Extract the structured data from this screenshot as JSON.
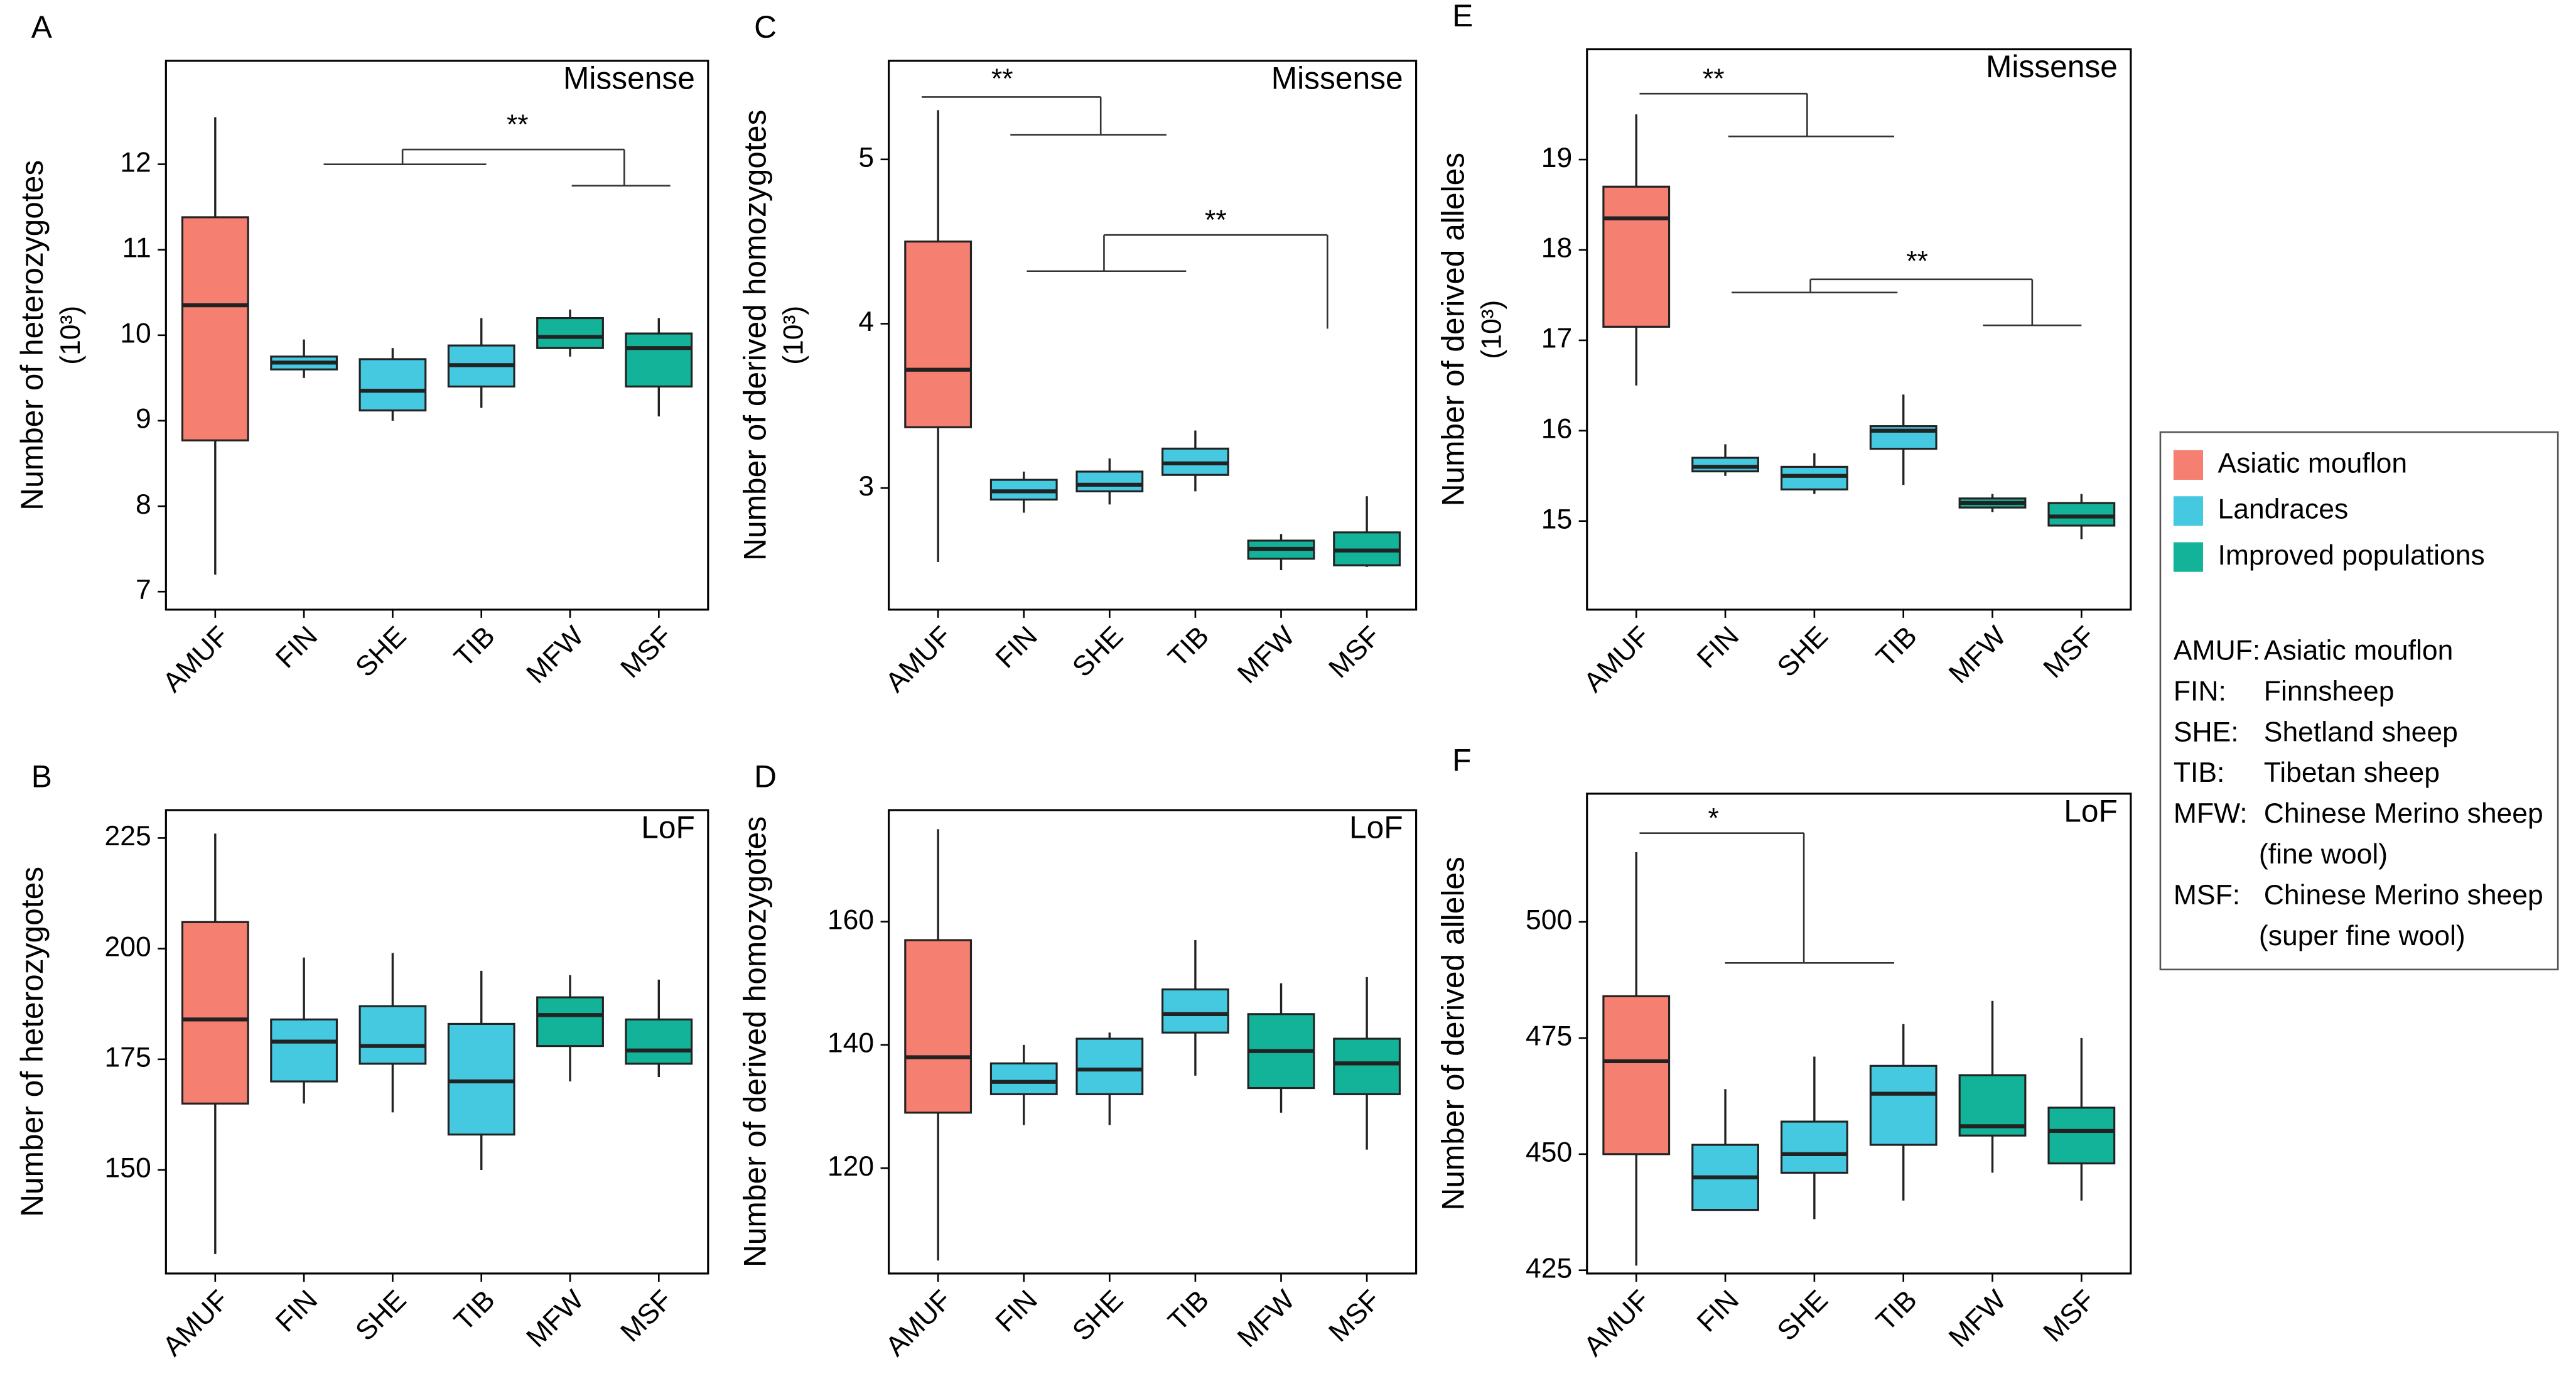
{
  "chart_data": [
    {
      "type": "box",
      "panel": "A",
      "tag": "Missense",
      "ylabel": "Number of heterozygotes",
      "ylabel_unit": "(10³)",
      "categories": [
        "AMUF",
        "FIN",
        "SHE",
        "TIB",
        "MFW",
        "MSF"
      ],
      "colors": [
        "#f57f70",
        "#45c9e0",
        "#45c9e0",
        "#45c9e0",
        "#13b39a",
        "#13b39a"
      ],
      "boxes": [
        {
          "min": 7.2,
          "q1": 8.77,
          "median": 10.35,
          "q3": 11.38,
          "max": 12.55
        },
        {
          "min": 9.5,
          "q1": 9.6,
          "median": 9.68,
          "q3": 9.75,
          "max": 9.95
        },
        {
          "min": 9.0,
          "q1": 9.12,
          "median": 9.35,
          "q3": 9.72,
          "max": 9.85
        },
        {
          "min": 9.15,
          "q1": 9.4,
          "median": 9.65,
          "q3": 9.88,
          "max": 10.2
        },
        {
          "min": 9.75,
          "q1": 9.85,
          "median": 9.98,
          "q3": 10.2,
          "max": 10.3
        },
        {
          "min": 9.05,
          "q1": 9.4,
          "median": 9.85,
          "q3": 10.02,
          "max": 10.2
        }
      ],
      "ylim": [
        6.79,
        13.21
      ],
      "yticks": [
        7,
        8,
        9,
        10,
        11,
        12
      ],
      "annotations": [
        {
          "text": "**"
        }
      ]
    },
    {
      "type": "box",
      "panel": "B",
      "tag": "LoF",
      "ylabel": "Number of heterozygotes",
      "categories": [
        "AMUF",
        "FIN",
        "SHE",
        "TIB",
        "MFW",
        "MSF"
      ],
      "colors": [
        "#f57f70",
        "#45c9e0",
        "#45c9e0",
        "#45c9e0",
        "#13b39a",
        "#13b39a"
      ],
      "boxes": [
        {
          "min": 131,
          "q1": 165,
          "median": 184,
          "q3": 206,
          "max": 226
        },
        {
          "min": 165,
          "q1": 170,
          "median": 179,
          "q3": 184,
          "max": 198
        },
        {
          "min": 163,
          "q1": 174,
          "median": 178,
          "q3": 187,
          "max": 199
        },
        {
          "min": 150,
          "q1": 158,
          "median": 170,
          "q3": 183,
          "max": 195
        },
        {
          "min": 170,
          "q1": 178,
          "median": 185,
          "q3": 189,
          "max": 194
        },
        {
          "min": 171,
          "q1": 174,
          "median": 177,
          "q3": 184,
          "max": 193
        }
      ],
      "ylim": [
        126.6,
        231.3
      ],
      "yticks": [
        150,
        175,
        200,
        225
      ],
      "annotations": []
    },
    {
      "type": "box",
      "panel": "C",
      "tag": "Missense",
      "ylabel": "Number of derived homozygotes",
      "ylabel_unit": "(10³)",
      "categories": [
        "AMUF",
        "FIN",
        "SHE",
        "TIB",
        "MFW",
        "MSF"
      ],
      "colors": [
        "#f57f70",
        "#45c9e0",
        "#45c9e0",
        "#45c9e0",
        "#13b39a",
        "#13b39a"
      ],
      "boxes": [
        {
          "min": 2.55,
          "q1": 3.37,
          "median": 3.72,
          "q3": 4.5,
          "max": 5.3
        },
        {
          "min": 2.85,
          "q1": 2.93,
          "median": 2.98,
          "q3": 3.05,
          "max": 3.1
        },
        {
          "min": 2.9,
          "q1": 2.98,
          "median": 3.02,
          "q3": 3.1,
          "max": 3.18
        },
        {
          "min": 2.98,
          "q1": 3.08,
          "median": 3.15,
          "q3": 3.24,
          "max": 3.35
        },
        {
          "min": 2.5,
          "q1": 2.57,
          "median": 2.63,
          "q3": 2.68,
          "max": 2.72
        },
        {
          "min": 2.52,
          "q1": 2.53,
          "median": 2.62,
          "q3": 2.73,
          "max": 2.95
        }
      ],
      "ylim": [
        2.26,
        5.6
      ],
      "yticks": [
        3,
        4,
        5
      ],
      "annotations": [
        {
          "text": "**"
        },
        {
          "text": "**"
        }
      ]
    },
    {
      "type": "box",
      "panel": "D",
      "tag": "LoF",
      "ylabel": "Number of derived homozygotes",
      "categories": [
        "AMUF",
        "FIN",
        "SHE",
        "TIB",
        "MFW",
        "MSF"
      ],
      "colors": [
        "#f57f70",
        "#45c9e0",
        "#45c9e0",
        "#45c9e0",
        "#13b39a",
        "#13b39a"
      ],
      "boxes": [
        {
          "min": 105,
          "q1": 129,
          "median": 138,
          "q3": 157,
          "max": 175
        },
        {
          "min": 127,
          "q1": 132,
          "median": 134,
          "q3": 137,
          "max": 140
        },
        {
          "min": 127,
          "q1": 132,
          "median": 136,
          "q3": 141,
          "max": 142
        },
        {
          "min": 135,
          "q1": 142,
          "median": 145,
          "q3": 149,
          "max": 157
        },
        {
          "min": 129,
          "q1": 133,
          "median": 139,
          "q3": 145,
          "max": 150
        },
        {
          "min": 123,
          "q1": 132,
          "median": 137,
          "q3": 141,
          "max": 151
        }
      ],
      "ylim": [
        102.9,
        178.1
      ],
      "yticks": [
        120,
        140,
        160
      ],
      "annotations": []
    },
    {
      "type": "box",
      "panel": "E",
      "tag": "Missense",
      "ylabel": "Number of derived alleles",
      "ylabel_unit": "(10³)",
      "categories": [
        "AMUF",
        "FIN",
        "SHE",
        "TIB",
        "MFW",
        "MSF"
      ],
      "colors": [
        "#f57f70",
        "#45c9e0",
        "#45c9e0",
        "#45c9e0",
        "#13b39a",
        "#13b39a"
      ],
      "boxes": [
        {
          "min": 16.5,
          "q1": 17.15,
          "median": 18.35,
          "q3": 18.7,
          "max": 19.5
        },
        {
          "min": 15.5,
          "q1": 15.55,
          "median": 15.6,
          "q3": 15.7,
          "max": 15.85
        },
        {
          "min": 15.3,
          "q1": 15.35,
          "median": 15.5,
          "q3": 15.6,
          "max": 15.75
        },
        {
          "min": 15.4,
          "q1": 15.8,
          "median": 16.0,
          "q3": 16.05,
          "max": 16.4
        },
        {
          "min": 15.1,
          "q1": 15.15,
          "median": 15.2,
          "q3": 15.25,
          "max": 15.3
        },
        {
          "min": 14.8,
          "q1": 14.95,
          "median": 15.05,
          "q3": 15.2,
          "max": 15.3
        }
      ],
      "ylim": [
        14.02,
        20.22
      ],
      "yticks": [
        15,
        16,
        17,
        18,
        19
      ],
      "annotations": [
        {
          "text": "**"
        },
        {
          "text": "**"
        }
      ]
    },
    {
      "type": "box",
      "panel": "F",
      "tag": "LoF",
      "ylabel": "Number of derived alleles",
      "categories": [
        "AMUF",
        "FIN",
        "SHE",
        "TIB",
        "MFW",
        "MSF"
      ],
      "colors": [
        "#f57f70",
        "#45c9e0",
        "#45c9e0",
        "#45c9e0",
        "#13b39a",
        "#13b39a"
      ],
      "boxes": [
        {
          "min": 426,
          "q1": 450,
          "median": 470,
          "q3": 484,
          "max": 515
        },
        {
          "min": 438,
          "q1": 438,
          "median": 445,
          "q3": 452,
          "max": 464
        },
        {
          "min": 436,
          "q1": 446,
          "median": 450,
          "q3": 457,
          "max": 471
        },
        {
          "min": 440,
          "q1": 452,
          "median": 463,
          "q3": 469,
          "max": 478
        },
        {
          "min": 446,
          "q1": 454,
          "median": 456,
          "q3": 467,
          "max": 483
        },
        {
          "min": 440,
          "q1": 448,
          "median": 455,
          "q3": 460,
          "max": 475
        }
      ],
      "ylim": [
        424.3,
        527.6
      ],
      "yticks": [
        425,
        450,
        475,
        500
      ],
      "annotations": [
        {
          "text": "*"
        }
      ]
    }
  ],
  "legend": {
    "items": [
      {
        "name": "Asiatic mouflon",
        "color": "#f57f70"
      },
      {
        "name": "Landraces",
        "color": "#45c9e0"
      },
      {
        "name": "Improved populations",
        "color": "#13b39a"
      }
    ],
    "abbreviations": [
      {
        "key": "AMUF:",
        "desc": [
          "Asiatic mouflon"
        ]
      },
      {
        "key": "FIN:",
        "desc": [
          "Finnsheep"
        ]
      },
      {
        "key": "SHE:",
        "desc": [
          "Shetland sheep"
        ]
      },
      {
        "key": "TIB:",
        "desc": [
          "Tibetan sheep"
        ]
      },
      {
        "key": "MFW:",
        "desc": [
          "Chinese Merino sheep",
          "(fine wool)"
        ]
      },
      {
        "key": "MSF:",
        "desc": [
          "Chinese Merino sheep",
          "(super fine wool)"
        ]
      }
    ]
  }
}
